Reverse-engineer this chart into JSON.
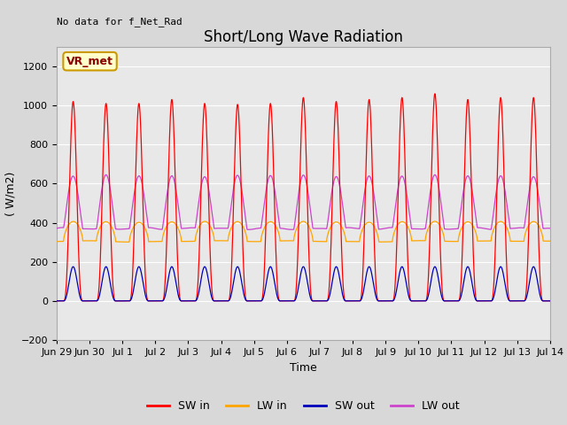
{
  "title": "Short/Long Wave Radiation",
  "xlabel": "Time",
  "ylabel": "( W/m2)",
  "annotation": "No data for f_Net_Rad",
  "legend_label": "VR_met",
  "ylim": [
    -200,
    1300
  ],
  "yticks": [
    -200,
    0,
    200,
    400,
    600,
    800,
    1000,
    1200
  ],
  "colors": {
    "SW_in": "#ff0000",
    "LW_in": "#ffa500",
    "SW_out": "#0000bb",
    "LW_out": "#cc44cc"
  },
  "bg_color": "#d8d8d8",
  "plot_bg": "#e8e8e8",
  "SW_in_peak": 1020,
  "LW_in_base": 305,
  "LW_in_peak": 420,
  "SW_out_peak": 175,
  "LW_out_base": 370,
  "LW_out_peak": 640,
  "title_fontsize": 12,
  "axis_fontsize": 9,
  "tick_fontsize": 8,
  "legend_fontsize": 9,
  "tick_labels": [
    "Jun 29",
    "Jun 30",
    "Jul 1",
    "Jul 2",
    "Jul 3",
    "Jul 4",
    "Jul 5",
    "Jul 6",
    "Jul 7",
    "Jul 8",
    "Jul 9",
    "Jul 10",
    "Jul 11",
    "Jul 12",
    "Jul 13",
    "Jul 14"
  ]
}
